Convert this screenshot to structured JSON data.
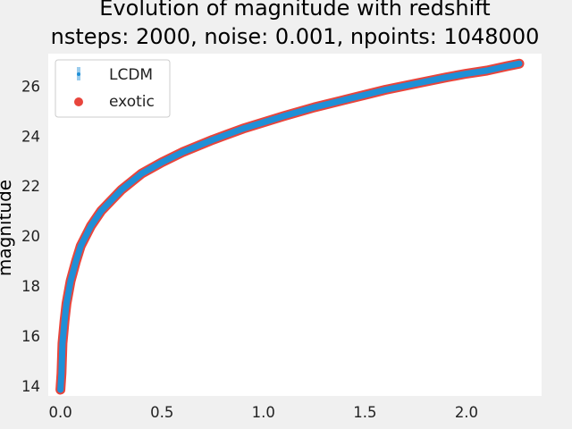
{
  "chart_data": {
    "type": "scatter",
    "title": "Evolution of magnitude with redshift",
    "subtitle": "nsteps: 2000, noise: 0.001, npoints: 1048000",
    "xlabel": "",
    "ylabel": "magnitude",
    "xlim": [
      -0.06,
      2.37
    ],
    "ylim": [
      13.6,
      27.3
    ],
    "xticks": [
      0.0,
      0.5,
      1.0,
      1.5,
      2.0
    ],
    "xtick_labels": [
      "0.0",
      "0.5",
      "1.0",
      "1.5",
      "2.0"
    ],
    "yticks": [
      14,
      16,
      18,
      20,
      22,
      24,
      26
    ],
    "ytick_labels": [
      "14",
      "16",
      "18",
      "20",
      "22",
      "24",
      "26"
    ],
    "grid": false,
    "legend_position": "top-left",
    "series": [
      {
        "name": "exotic",
        "color": "#e8453c",
        "marker": "circle",
        "x": [
          0.0,
          0.005,
          0.01,
          0.02,
          0.03,
          0.05,
          0.075,
          0.1,
          0.15,
          0.2,
          0.3,
          0.4,
          0.5,
          0.6,
          0.75,
          0.9,
          1.0,
          1.1,
          1.25,
          1.4,
          1.5,
          1.6,
          1.75,
          1.9,
          2.0,
          2.1,
          2.2,
          2.26
        ],
        "y": [
          13.85,
          14.5,
          15.7,
          16.6,
          17.3,
          18.2,
          18.95,
          19.6,
          20.4,
          21.0,
          21.85,
          22.5,
          22.95,
          23.35,
          23.85,
          24.3,
          24.55,
          24.8,
          25.15,
          25.45,
          25.65,
          25.85,
          26.1,
          26.35,
          26.5,
          26.62,
          26.8,
          26.9
        ]
      },
      {
        "name": "LCDM",
        "color": "#1f8fd6",
        "marker": "errorbar",
        "x": [
          0.0,
          0.005,
          0.01,
          0.02,
          0.03,
          0.05,
          0.075,
          0.1,
          0.15,
          0.2,
          0.3,
          0.4,
          0.5,
          0.6,
          0.75,
          0.9,
          1.0,
          1.1,
          1.25,
          1.4,
          1.5,
          1.6,
          1.75,
          1.9,
          2.0,
          2.1,
          2.2,
          2.26
        ],
        "y": [
          13.85,
          14.5,
          15.7,
          16.6,
          17.3,
          18.2,
          18.95,
          19.6,
          20.4,
          21.0,
          21.85,
          22.5,
          22.95,
          23.35,
          23.85,
          24.3,
          24.55,
          24.8,
          25.15,
          25.45,
          25.65,
          25.85,
          26.1,
          26.35,
          26.5,
          26.62,
          26.8,
          26.9
        ]
      }
    ]
  }
}
